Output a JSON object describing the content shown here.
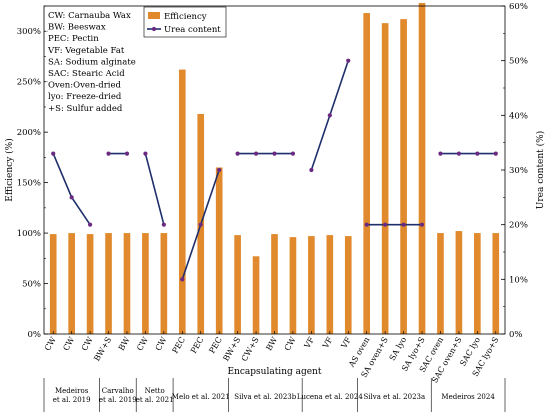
{
  "chart_data": {
    "type": "bar",
    "categories": [
      "CW",
      "CW",
      "CW",
      "BW+S",
      "BW",
      "CW",
      "CW",
      "PEC",
      "PEC",
      "PEC",
      "BW+S",
      "CW+S",
      "BW",
      "CW",
      "VF",
      "VF",
      "VF",
      "AS oven",
      "SA oven+S",
      "SA lyo",
      "SA lyo+S",
      "SAC oven",
      "SAC oven+S",
      "SAC lyo",
      "SAC lyo+S"
    ],
    "series": [
      {
        "name": "Efficiency",
        "axis": "left",
        "kind": "bar",
        "color": "#E0892D",
        "values": [
          99,
          100,
          99,
          100,
          100,
          100,
          100,
          262,
          218,
          165,
          98,
          77,
          99,
          96,
          97,
          98,
          97,
          318,
          308,
          312,
          328,
          100,
          102,
          100,
          100
        ]
      },
      {
        "name": "Urea content",
        "axis": "right",
        "kind": "line",
        "color": "#1F2F6B",
        "values": [
          33,
          25,
          20,
          33,
          33,
          33,
          20,
          10,
          20,
          30,
          33,
          33,
          33,
          33,
          30,
          40,
          50,
          20,
          20,
          20,
          20,
          33,
          33,
          33,
          33
        ]
      }
    ],
    "line_segments": [
      [
        0,
        2
      ],
      [
        3,
        4
      ],
      [
        5,
        6
      ],
      [
        7,
        9
      ],
      [
        10,
        13
      ],
      [
        14,
        16
      ],
      [
        17,
        20
      ],
      [
        21,
        24
      ]
    ],
    "xlabel": "Encapsulating agent",
    "ylabel": "Efficiency (%)",
    "y2label": "Urea content (%)",
    "ylim": [
      0,
      325
    ],
    "y_ticks": [
      "0%",
      "50%",
      "100%",
      "150%",
      "200%",
      "250%",
      "300%"
    ],
    "y2lim": [
      0,
      60
    ],
    "y2_ticks": [
      "0%",
      "10%",
      "20%",
      "30%",
      "40%",
      "50%",
      "60%"
    ],
    "groups": [
      {
        "label_lines": [
          "Medeiros",
          "et al. 2019"
        ],
        "start": 0,
        "end": 2
      },
      {
        "label_lines": [
          "Carvalho",
          "et al. 2019"
        ],
        "start": 3,
        "end": 4
      },
      {
        "label_lines": [
          "Netto",
          "et al. 2021"
        ],
        "start": 5,
        "end": 6
      },
      {
        "label_lines": [
          "Melo et al. 2021"
        ],
        "start": 7,
        "end": 9
      },
      {
        "label_lines": [
          "Silva et al. 2023b"
        ],
        "start": 10,
        "end": 13
      },
      {
        "label_lines": [
          "Lucena et al. 2024"
        ],
        "start": 14,
        "end": 16
      },
      {
        "label_lines": [
          "Silva et al. 2023a"
        ],
        "start": 17,
        "end": 20
      },
      {
        "label_lines": [
          "Medeiros 2024"
        ],
        "start": 21,
        "end": 24
      }
    ],
    "abbreviations": [
      "CW: Carnauba Wax",
      "BW: Beeswax",
      "PEC: Pectin",
      "VF: Vegetable Fat",
      "SA: Sodium alginate",
      "SAC: Stearic Acid",
      "Oven:Oven-dried",
      "lyo: Freeze-dried",
      "+S: Sulfur added"
    ],
    "legend": {
      "position": "top-left",
      "items": [
        "Efficiency",
        "Urea content"
      ]
    },
    "grid": false
  }
}
